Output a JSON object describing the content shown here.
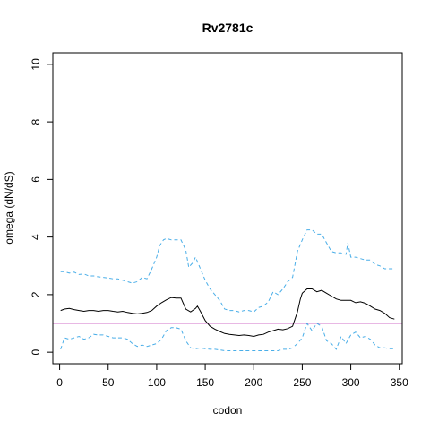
{
  "chart_data": {
    "type": "line",
    "title": "Rv2781c",
    "xlabel": "codon",
    "ylabel": "omega (dN/dS)",
    "xlim": [
      -7,
      353
    ],
    "ylim": [
      -0.4,
      10.4
    ],
    "xticks": [
      0,
      50,
      100,
      150,
      200,
      250,
      300,
      350
    ],
    "yticks": [
      0,
      2,
      4,
      6,
      8,
      10
    ],
    "grid": false,
    "reference_line": {
      "y": 1,
      "color": "#d070c8"
    },
    "series": [
      {
        "style": "solid",
        "color": "#000000",
        "x": [
          1,
          5,
          10,
          15,
          20,
          25,
          30,
          35,
          40,
          45,
          50,
          55,
          60,
          65,
          70,
          75,
          80,
          85,
          90,
          95,
          100,
          105,
          110,
          115,
          120,
          125,
          130,
          135,
          140,
          142,
          145,
          150,
          155,
          160,
          165,
          170,
          175,
          180,
          185,
          190,
          195,
          200,
          205,
          210,
          215,
          220,
          225,
          230,
          235,
          240,
          245,
          248,
          250,
          255,
          260,
          265,
          270,
          275,
          280,
          285,
          290,
          295,
          300,
          305,
          310,
          315,
          320,
          325,
          330,
          335,
          340,
          345
        ],
        "y": [
          1.45,
          1.5,
          1.52,
          1.48,
          1.45,
          1.42,
          1.45,
          1.45,
          1.42,
          1.45,
          1.45,
          1.42,
          1.4,
          1.42,
          1.38,
          1.35,
          1.33,
          1.35,
          1.38,
          1.45,
          1.6,
          1.72,
          1.82,
          1.9,
          1.88,
          1.88,
          1.5,
          1.4,
          1.52,
          1.6,
          1.42,
          1.1,
          0.9,
          0.8,
          0.72,
          0.65,
          0.62,
          0.6,
          0.58,
          0.6,
          0.58,
          0.55,
          0.6,
          0.62,
          0.7,
          0.75,
          0.8,
          0.78,
          0.82,
          0.9,
          1.4,
          1.85,
          2.05,
          2.2,
          2.2,
          2.1,
          2.15,
          2.05,
          1.95,
          1.85,
          1.8,
          1.8,
          1.8,
          1.72,
          1.75,
          1.7,
          1.6,
          1.5,
          1.45,
          1.35,
          1.2,
          1.15
        ]
      },
      {
        "style": "dashed",
        "color": "#4aaee8",
        "x": [
          1,
          5,
          10,
          15,
          20,
          25,
          30,
          35,
          40,
          45,
          50,
          55,
          60,
          65,
          70,
          75,
          80,
          85,
          90,
          95,
          100,
          103,
          107,
          110,
          115,
          120,
          125,
          130,
          133,
          137,
          140,
          145,
          150,
          155,
          160,
          165,
          170,
          175,
          180,
          185,
          190,
          195,
          200,
          205,
          210,
          215,
          220,
          225,
          230,
          235,
          240,
          245,
          250,
          255,
          260,
          265,
          270,
          275,
          280,
          285,
          290,
          295,
          297,
          300,
          305,
          310,
          315,
          320,
          325,
          330,
          335,
          340,
          345
        ],
        "y": [
          2.8,
          2.8,
          2.75,
          2.78,
          2.7,
          2.72,
          2.65,
          2.65,
          2.62,
          2.6,
          2.58,
          2.55,
          2.55,
          2.5,
          2.45,
          2.4,
          2.45,
          2.6,
          2.55,
          2.9,
          3.3,
          3.7,
          3.9,
          3.95,
          3.9,
          3.9,
          3.9,
          3.55,
          2.95,
          3.1,
          3.3,
          2.9,
          2.5,
          2.2,
          2.0,
          1.8,
          1.5,
          1.45,
          1.45,
          1.4,
          1.45,
          1.45,
          1.4,
          1.55,
          1.6,
          1.75,
          2.1,
          2.0,
          2.2,
          2.45,
          2.6,
          3.5,
          3.9,
          4.25,
          4.25,
          4.1,
          4.1,
          3.8,
          3.5,
          3.45,
          3.45,
          3.4,
          3.8,
          3.3,
          3.3,
          3.25,
          3.2,
          3.2,
          3.05,
          3.0,
          2.9,
          2.9,
          2.9
        ]
      },
      {
        "style": "dashed",
        "color": "#4aaee8",
        "x": [
          1,
          5,
          10,
          15,
          20,
          25,
          30,
          35,
          40,
          45,
          50,
          55,
          60,
          65,
          70,
          75,
          80,
          85,
          90,
          95,
          100,
          105,
          110,
          115,
          120,
          125,
          130,
          135,
          140,
          145,
          150,
          155,
          160,
          165,
          170,
          175,
          180,
          185,
          190,
          195,
          200,
          205,
          210,
          215,
          220,
          225,
          230,
          235,
          240,
          245,
          250,
          255,
          260,
          265,
          270,
          275,
          280,
          285,
          290,
          295,
          300,
          305,
          310,
          315,
          320,
          325,
          330,
          335,
          340,
          345
        ],
        "y": [
          0.1,
          0.5,
          0.45,
          0.5,
          0.55,
          0.45,
          0.5,
          0.62,
          0.6,
          0.6,
          0.55,
          0.5,
          0.5,
          0.5,
          0.45,
          0.3,
          0.2,
          0.25,
          0.2,
          0.25,
          0.3,
          0.45,
          0.75,
          0.85,
          0.85,
          0.8,
          0.4,
          0.15,
          0.12,
          0.15,
          0.12,
          0.1,
          0.1,
          0.08,
          0.05,
          0.05,
          0.05,
          0.05,
          0.05,
          0.05,
          0.05,
          0.05,
          0.05,
          0.05,
          0.05,
          0.05,
          0.1,
          0.1,
          0.15,
          0.3,
          0.5,
          1.0,
          0.75,
          1.0,
          0.9,
          0.4,
          0.3,
          0.1,
          0.55,
          0.3,
          0.6,
          0.7,
          0.5,
          0.55,
          0.45,
          0.25,
          0.15,
          0.15,
          0.12,
          0.12
        ]
      }
    ]
  }
}
